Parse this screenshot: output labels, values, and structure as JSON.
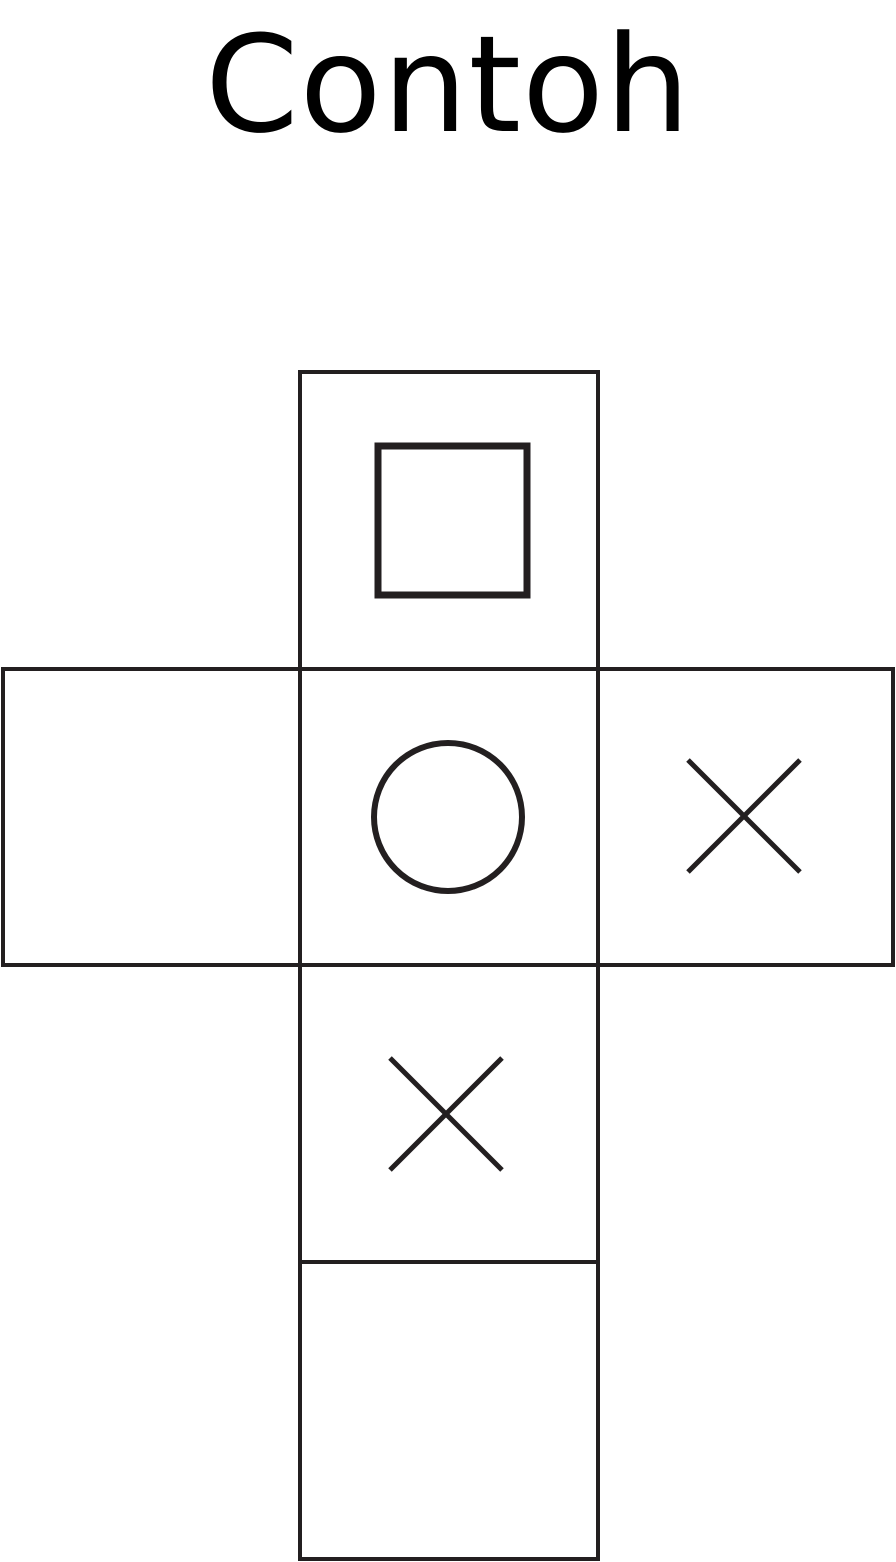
{
  "title": "Contoh",
  "colors": {
    "stroke": "#231f20",
    "background": "#ffffff"
  },
  "net": {
    "description_free": true,
    "faces": [
      {
        "id": "top",
        "symbol": "square-icon"
      },
      {
        "id": "left",
        "symbol": null
      },
      {
        "id": "center",
        "symbol": "circle-icon"
      },
      {
        "id": "right",
        "symbol": "cross-icon"
      },
      {
        "id": "below-center",
        "symbol": "cross-icon"
      },
      {
        "id": "bottom",
        "symbol": null
      }
    ]
  }
}
